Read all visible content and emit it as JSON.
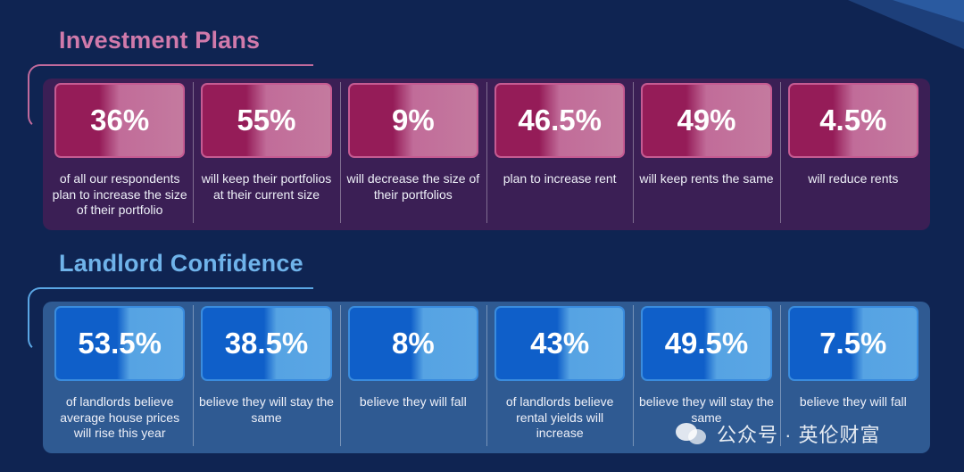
{
  "investment": {
    "title": "Investment Plans",
    "items": [
      {
        "value": "36%",
        "description": "of all our respondents plan to increase the size of their portfolio"
      },
      {
        "value": "55%",
        "description": "will keep their portfolios at their current size"
      },
      {
        "value": "9%",
        "description": "will decrease the size of their portfolios"
      },
      {
        "value": "46.5%",
        "description": "plan to increase rent"
      },
      {
        "value": "49%",
        "description": "will keep rents the same"
      },
      {
        "value": "4.5%",
        "description": "will reduce rents"
      }
    ]
  },
  "confidence": {
    "title": "Landlord Confidence",
    "items": [
      {
        "value": "53.5%",
        "description": "of landlords believe average house prices will rise this year"
      },
      {
        "value": "38.5%",
        "description": "believe they will stay the same"
      },
      {
        "value": "8%",
        "description": "believe they will fall"
      },
      {
        "value": "43%",
        "description": "of landlords believe rental yields will increase"
      },
      {
        "value": "49.5%",
        "description": "believe they will stay the same"
      },
      {
        "value": "7.5%",
        "description": "believe they will fall"
      }
    ]
  },
  "watermark": {
    "text": "公众号 · 英伦财富",
    "icon": "wechat-icon"
  },
  "colors": {
    "background": "#0f2452",
    "investment_title": "#d07aab",
    "confidence_title": "#6fb3ea",
    "investment_tile": "#951c58",
    "confidence_tile": "#0f5fc9"
  }
}
